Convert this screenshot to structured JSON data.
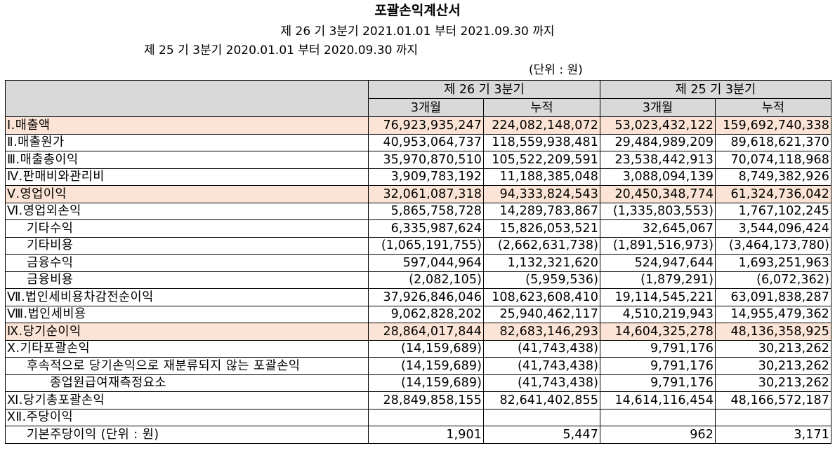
{
  "title": "포괄손익계산서",
  "period_current": "제 26 기 3분기 2021.01.01 부터 2021.09.30 까지",
  "period_prior": "제 25 기 3분기 2020.01.01 부터 2020.09.30 까지",
  "unit": "(단위 : 원)",
  "header": {
    "current_period": "제 26 기 3분기",
    "prior_period": "제 25 기 3분기",
    "col_3m": "3개월",
    "col_cum": "누적"
  },
  "rows": [
    {
      "label": "Ⅰ.매출액",
      "cur_3m": "76,923,935,247",
      "cur_cum": "224,082,148,072",
      "pri_3m": "53,023,432,122",
      "pri_cum": "159,692,740,338"
    },
    {
      "label": "Ⅱ.매출원가",
      "cur_3m": "40,953,064,737",
      "cur_cum": "118,559,938,481",
      "pri_3m": "29,484,989,209",
      "pri_cum": "89,618,621,370"
    },
    {
      "label": "Ⅲ.매출총이익",
      "cur_3m": "35,970,870,510",
      "cur_cum": "105,522,209,591",
      "pri_3m": "23,538,442,913",
      "pri_cum": "70,074,118,968"
    },
    {
      "label": "Ⅳ.판매비와관리비",
      "cur_3m": "3,909,783,192",
      "cur_cum": "11,188,385,048",
      "pri_3m": "3,088,094,139",
      "pri_cum": "8,749,382,926"
    },
    {
      "label": "Ⅴ.영업이익",
      "cur_3m": "32,061,087,318",
      "cur_cum": "94,333,824,543",
      "pri_3m": "20,450,348,774",
      "pri_cum": "61,324,736,042"
    },
    {
      "label": "Ⅵ.영업외손익",
      "cur_3m": "5,865,758,728",
      "cur_cum": "14,289,783,867",
      "pri_3m": "(1,335,803,553)",
      "pri_cum": "1,767,102,245"
    },
    {
      "label": "기타수익",
      "cur_3m": "6,335,987,624",
      "cur_cum": "15,826,053,521",
      "pri_3m": "32,645,067",
      "pri_cum": "3,544,096,424"
    },
    {
      "label": "기타비용",
      "cur_3m": "(1,065,191,755)",
      "cur_cum": "(2,662,631,738)",
      "pri_3m": "(1,891,516,973)",
      "pri_cum": "(3,464,173,780)"
    },
    {
      "label": "금융수익",
      "cur_3m": "597,044,964",
      "cur_cum": "1,132,321,620",
      "pri_3m": "524,947,644",
      "pri_cum": "1,693,251,963"
    },
    {
      "label": "금융비용",
      "cur_3m": "(2,082,105)",
      "cur_cum": "(5,959,536)",
      "pri_3m": "(1,879,291)",
      "pri_cum": "(6,072,362)"
    },
    {
      "label": "Ⅶ.법인세비용차감전순이익",
      "cur_3m": "37,926,846,046",
      "cur_cum": "108,623,608,410",
      "pri_3m": "19,114,545,221",
      "pri_cum": "63,091,838,287"
    },
    {
      "label": "Ⅷ.법인세비용",
      "cur_3m": "9,062,828,202",
      "cur_cum": "25,940,462,117",
      "pri_3m": "4,510,219,943",
      "pri_cum": "14,955,479,362"
    },
    {
      "label": "Ⅸ.당기순이익",
      "cur_3m": "28,864,017,844",
      "cur_cum": "82,683,146,293",
      "pri_3m": "14,604,325,278",
      "pri_cum": "48,136,358,925"
    },
    {
      "label": "Ⅹ.기타포괄손익",
      "cur_3m": "(14,159,689)",
      "cur_cum": "(41,743,438)",
      "pri_3m": "9,791,176",
      "pri_cum": "30,213,262"
    },
    {
      "label": "후속적으로 당기손익으로 재분류되지 않는 포괄손익",
      "cur_3m": "(14,159,689)",
      "cur_cum": "(41,743,438)",
      "pri_3m": "9,791,176",
      "pri_cum": "30,213,262"
    },
    {
      "label": "종업원급여재측정요소",
      "cur_3m": "(14,159,689)",
      "cur_cum": "(41,743,438)",
      "pri_3m": "9,791,176",
      "pri_cum": "30,213,262"
    },
    {
      "label": "Ⅺ.당기총포괄손익",
      "cur_3m": "28,849,858,155",
      "cur_cum": "82,641,402,855",
      "pri_3m": "14,614,116,454",
      "pri_cum": "48,166,572,187"
    },
    {
      "label": "ⅩⅡ.주당이익",
      "cur_3m": "",
      "cur_cum": "",
      "pri_3m": "",
      "pri_cum": ""
    },
    {
      "label": "기본주당이익 (단위 : 원)",
      "cur_3m": "1,901",
      "cur_cum": "5,447",
      "pri_3m": "962",
      "pri_cum": "3,171"
    }
  ],
  "highlight_color": "#fbe4d5",
  "header_color": "#d9d9d9"
}
